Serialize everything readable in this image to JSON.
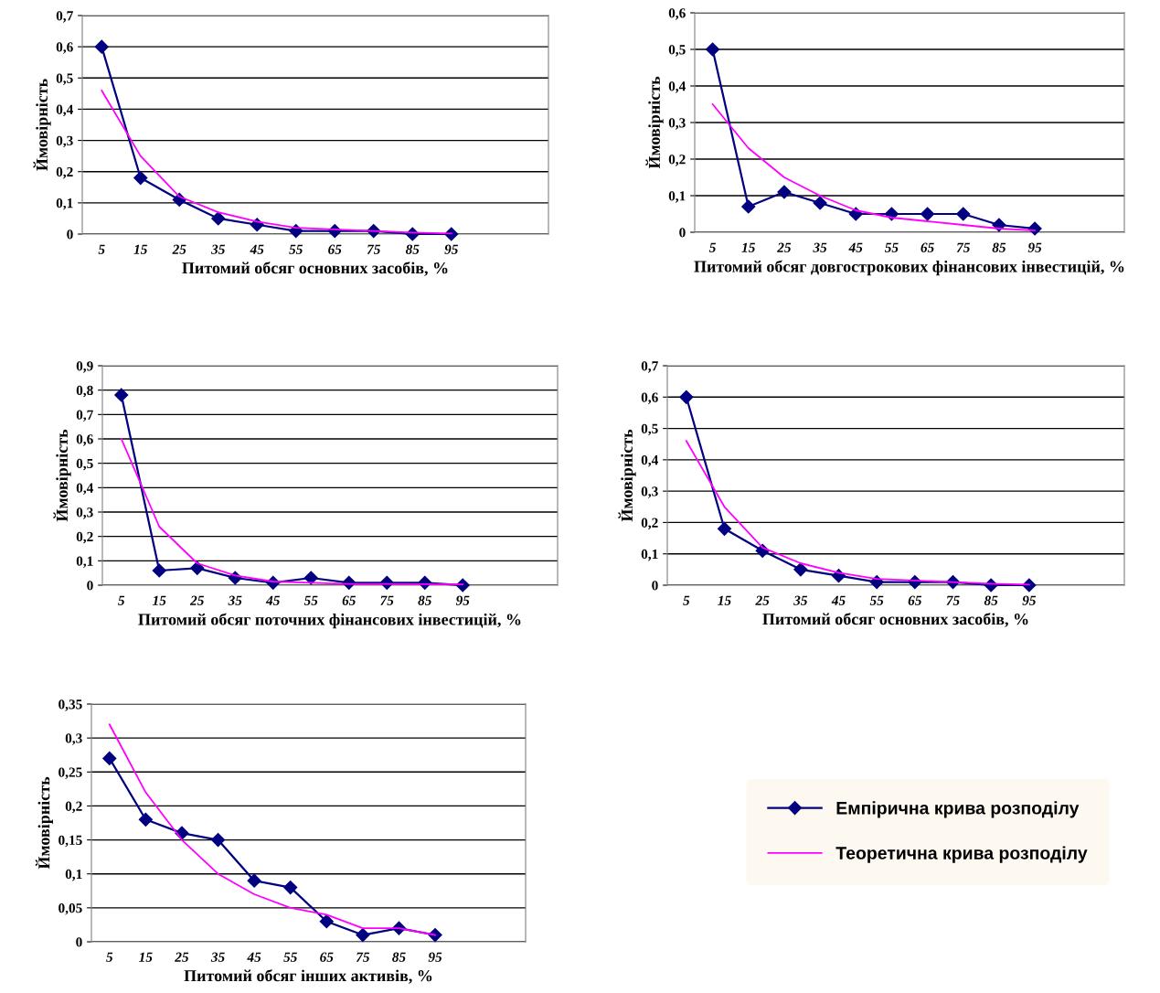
{
  "chart_data": [
    {
      "type": "line",
      "xlabel": "Питомий обсяг основних засобів, %",
      "ylabel": "Ймовірність",
      "categories": [
        "5",
        "15",
        "25",
        "35",
        "45",
        "55",
        "65",
        "75",
        "85",
        "95"
      ],
      "ylim": [
        0,
        0.7
      ],
      "yticks": [
        0,
        {
          "value": 0.1,
          "label": "0,1"
        },
        {
          "value": 0.2,
          "label": "0,2"
        },
        {
          "value": 0.3,
          "label": "0,3"
        },
        {
          "value": 0.4,
          "label": "0,4"
        },
        {
          "value": 0.5,
          "label": "0,5"
        },
        {
          "value": 0.6,
          "label": "0,6"
        },
        {
          "value": 0.7,
          "label": "0,7"
        }
      ],
      "grid": "y",
      "legend": "right",
      "series": [
        {
          "name": "Емпірична крива розподілу",
          "color": "#000080",
          "marker": "diamond",
          "values": [
            0.6,
            0.18,
            0.11,
            0.05,
            0.03,
            0.01,
            0.01,
            0.01,
            0,
            0
          ]
        },
        {
          "name": "Теоретична крива розподілу",
          "color": "#ff00ff",
          "marker": "none",
          "values": [
            0.46,
            0.25,
            0.12,
            0.07,
            0.04,
            0.02,
            0.015,
            0.01,
            0.005,
            0.002
          ]
        }
      ]
    },
    {
      "type": "line",
      "xlabel": "Питомий обсяг довгострокових фінансових інвестицій, %",
      "ylabel": "Ймовірність",
      "categories": [
        "5",
        "15",
        "25",
        "35",
        "45",
        "55",
        "65",
        "75",
        "85",
        "95"
      ],
      "ylim": [
        0,
        0.6
      ],
      "yticks": [
        0,
        {
          "value": 0.1,
          "label": "0,1"
        },
        {
          "value": 0.2,
          "label": "0,2"
        },
        {
          "value": 0.3,
          "label": "0,3"
        },
        {
          "value": 0.4,
          "label": "0,4"
        },
        {
          "value": 0.5,
          "label": "0,5"
        },
        {
          "value": 0.6,
          "label": "0,6"
        }
      ],
      "grid": "y",
      "series": [
        {
          "color": "#000080",
          "marker": "diamond",
          "values": [
            0.5,
            0.07,
            0.11,
            0.08,
            0.05,
            0.05,
            0.05,
            0.05,
            0.02,
            0.01
          ]
        },
        {
          "color": "#ff00ff",
          "marker": "none",
          "values": [
            0.35,
            0.23,
            0.15,
            0.1,
            0.06,
            0.04,
            0.03,
            0.02,
            0.01,
            0.005
          ]
        }
      ]
    },
    {
      "type": "line",
      "xlabel": "Питомий обсяг поточних фінансових інвестицій, %",
      "ylabel": "Ймовірність",
      "categories": [
        "5",
        "15",
        "25",
        "35",
        "45",
        "55",
        "65",
        "75",
        "85",
        "95"
      ],
      "ylim": [
        0,
        0.9
      ],
      "yticks": [
        0,
        {
          "value": 0.1,
          "label": "0,1"
        },
        {
          "value": 0.2,
          "label": "0,2"
        },
        {
          "value": 0.3,
          "label": "0,3"
        },
        {
          "value": 0.4,
          "label": "0,4"
        },
        {
          "value": 0.5,
          "label": "0,5"
        },
        {
          "value": 0.6,
          "label": "0,6"
        },
        {
          "value": 0.7,
          "label": "0,7"
        },
        {
          "value": 0.8,
          "label": "0,8"
        },
        {
          "value": 0.9,
          "label": "0,9"
        }
      ],
      "grid": "y",
      "series": [
        {
          "color": "#000080",
          "marker": "diamond",
          "values": [
            0.78,
            0.06,
            0.07,
            0.03,
            0.01,
            0.03,
            0.01,
            0.01,
            0.01,
            0
          ]
        },
        {
          "color": "#ff00ff",
          "marker": "none",
          "values": [
            0.6,
            0.24,
            0.09,
            0.04,
            0.015,
            0.01,
            0.005,
            0.005,
            0.004,
            0.003
          ]
        }
      ]
    },
    {
      "type": "line",
      "xlabel": "Питомий обсяг основних засобів, %",
      "ylabel": "Ймовірність",
      "categories": [
        "5",
        "15",
        "25",
        "35",
        "45",
        "55",
        "65",
        "75",
        "85",
        "95"
      ],
      "ylim": [
        0,
        0.7
      ],
      "yticks": [
        0,
        {
          "value": 0.1,
          "label": "0,1"
        },
        {
          "value": 0.2,
          "label": "0,2"
        },
        {
          "value": 0.3,
          "label": "0,3"
        },
        {
          "value": 0.4,
          "label": "0,4"
        },
        {
          "value": 0.5,
          "label": "0,5"
        },
        {
          "value": 0.6,
          "label": "0,6"
        },
        {
          "value": 0.7,
          "label": "0,7"
        }
      ],
      "grid": "y",
      "series": [
        {
          "color": "#000080",
          "marker": "diamond",
          "values": [
            0.6,
            0.18,
            0.11,
            0.05,
            0.03,
            0.01,
            0.01,
            0.01,
            0,
            0
          ]
        },
        {
          "color": "#ff00ff",
          "marker": "none",
          "values": [
            0.46,
            0.25,
            0.12,
            0.07,
            0.04,
            0.02,
            0.015,
            0.01,
            0.005,
            0.002
          ]
        }
      ]
    },
    {
      "type": "line",
      "xlabel": "Питомий обсяг інших активів, %",
      "ylabel": "Ймовірність",
      "categories": [
        "5",
        "15",
        "25",
        "35",
        "45",
        "55",
        "65",
        "75",
        "85",
        "95"
      ],
      "ylim": [
        0,
        0.35
      ],
      "yticks": [
        0,
        {
          "value": 0.05,
          "label": "0,05"
        },
        {
          "value": 0.1,
          "label": "0,1"
        },
        {
          "value": 0.15,
          "label": "0,15"
        },
        {
          "value": 0.2,
          "label": "0,2"
        },
        {
          "value": 0.25,
          "label": "0,25"
        },
        {
          "value": 0.3,
          "label": "0,3"
        },
        {
          "value": 0.35,
          "label": "0,35"
        }
      ],
      "grid": "y",
      "series": [
        {
          "color": "#000080",
          "marker": "diamond",
          "values": [
            0.27,
            0.18,
            0.16,
            0.15,
            0.09,
            0.08,
            0.03,
            0.01,
            0.02,
            0.01
          ]
        },
        {
          "color": "#ff00ff",
          "marker": "none",
          "values": [
            0.32,
            0.22,
            0.15,
            0.1,
            0.07,
            0.05,
            0.04,
            0.02,
            0.02,
            0.01
          ]
        }
      ]
    }
  ]
}
